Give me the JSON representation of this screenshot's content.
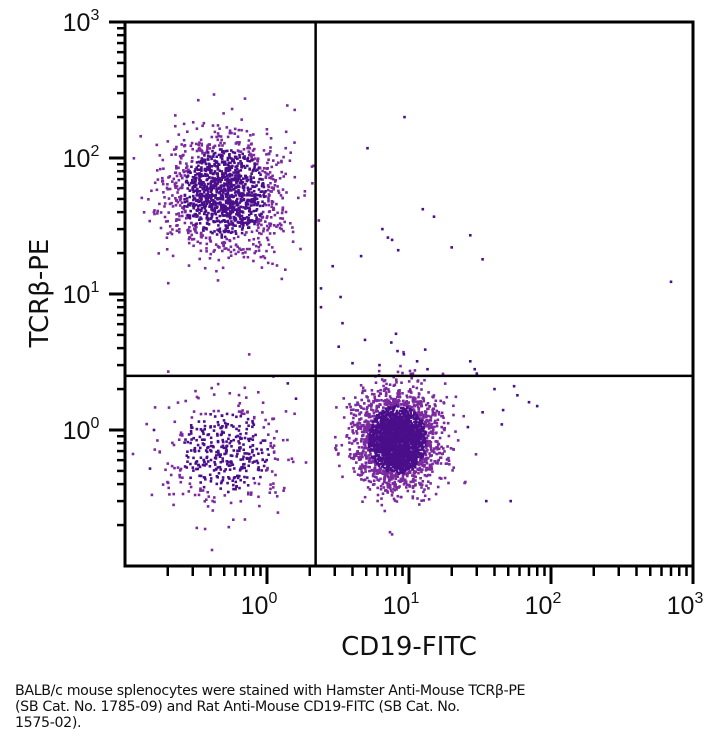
{
  "chart_data": {
    "type": "scatter",
    "subtype": "flow-cytometry-dot-plot",
    "xlabel": "CD19-FITC",
    "ylabel": "TCRβ-PE",
    "xscale": "log",
    "yscale": "log",
    "xlim": [
      0.1,
      1000
    ],
    "ylim": [
      0.1,
      1000
    ],
    "x_ticks": [
      {
        "value": 1,
        "base": "10",
        "exp": "0"
      },
      {
        "value": 10,
        "base": "10",
        "exp": "1"
      },
      {
        "value": 100,
        "base": "10",
        "exp": "2"
      },
      {
        "value": 1000,
        "base": "10",
        "exp": "3"
      }
    ],
    "y_ticks": [
      {
        "value": 1,
        "base": "10",
        "exp": "0"
      },
      {
        "value": 10,
        "base": "10",
        "exp": "1"
      },
      {
        "value": 100,
        "base": "10",
        "exp": "2"
      },
      {
        "value": 1000,
        "base": "10",
        "exp": "3"
      }
    ],
    "grid": false,
    "dot_color": "#4b0e8a",
    "dot_color_light": "#7a2a9e",
    "quadrant_gates": {
      "x": 2.2,
      "y": 2.5
    },
    "populations": [
      {
        "name": "TCRβ+ CD19- (T cells)",
        "quadrant": "upper-left",
        "center_x": 0.5,
        "center_y": 55,
        "spread_log_x": 0.2,
        "spread_log_y": 0.22,
        "count": 1500
      },
      {
        "name": "TCRβ- CD19+ (B cells)",
        "quadrant": "lower-right",
        "center_x": 8.3,
        "center_y": 0.85,
        "spread_log_x": 0.14,
        "spread_log_y": 0.17,
        "count": 2600
      },
      {
        "name": "TCRβ- CD19- (double negative)",
        "quadrant": "lower-left",
        "center_x": 0.5,
        "center_y": 0.68,
        "spread_log_x": 0.22,
        "spread_log_y": 0.2,
        "count": 450
      }
    ],
    "outliers": [
      [
        9.3,
        200
      ],
      [
        5.1,
        118
      ],
      [
        15,
        37
      ],
      [
        12.5,
        42
      ],
      [
        6.5,
        30
      ],
      [
        27,
        27
      ],
      [
        7.1,
        26
      ],
      [
        7.6,
        25
      ],
      [
        8.4,
        21
      ],
      [
        20,
        22
      ],
      [
        4.6,
        19
      ],
      [
        33,
        18
      ],
      [
        700,
        12.3
      ],
      [
        2.9,
        16
      ],
      [
        2.4,
        11
      ],
      [
        3.3,
        9.5
      ],
      [
        2.4,
        8
      ],
      [
        3.4,
        6.1
      ],
      [
        4.9,
        4.6
      ],
      [
        8.1,
        5.1
      ],
      [
        7.5,
        4.4
      ],
      [
        3.2,
        4.1
      ],
      [
        8.3,
        3.8
      ],
      [
        9.2,
        3.6
      ],
      [
        13,
        3.9
      ],
      [
        11.4,
        3.2
      ],
      [
        4.0,
        3.1
      ],
      [
        6.2,
        3.0
      ],
      [
        13.5,
        2.8
      ],
      [
        27,
        3.2
      ],
      [
        29,
        2.8
      ],
      [
        30,
        2.6
      ],
      [
        40,
        2.0
      ],
      [
        55,
        2.1
      ],
      [
        58,
        1.8
      ],
      [
        46,
        1.4
      ],
      [
        70,
        1.6
      ],
      [
        80,
        1.5
      ],
      [
        45,
        1.1
      ],
      [
        33,
        1.35
      ],
      [
        26,
        1.05
      ],
      [
        35,
        0.3
      ],
      [
        52,
        0.3
      ],
      [
        0.16,
        1.0
      ],
      [
        0.15,
        0.52
      ],
      [
        1.4,
        2.2
      ],
      [
        1.6,
        1.7
      ]
    ]
  },
  "caption": {
    "line1": "BALB/c mouse splenocytes were stained with Hamster Anti-Mouse TCRβ-PE",
    "line2": "(SB Cat. No. 1785-09) and Rat Anti-Mouse CD19-FITC (SB Cat. No.",
    "line3": "1575-02)."
  }
}
